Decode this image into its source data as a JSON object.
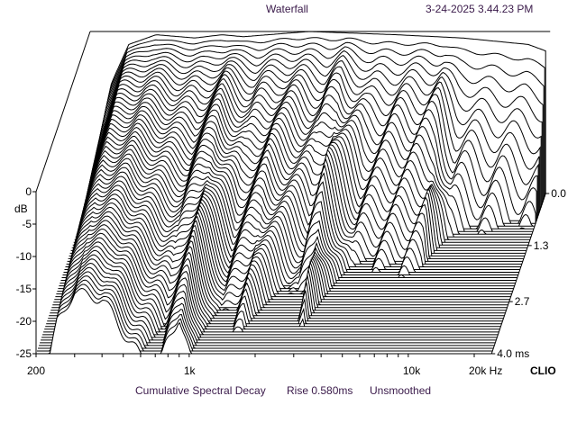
{
  "header": {
    "title": "Waterfall",
    "timestamp": "3-24-2025 3.44.23 PM"
  },
  "brand": "CLIO",
  "caption": {
    "mode": "Cumulative Spectral Decay",
    "rise": "Rise 0.580ms",
    "smoothing": "Unsmoothed"
  },
  "chart_data": {
    "type": "waterfall",
    "title": "Waterfall",
    "xlabel": "Hz",
    "ylabel": "dB",
    "zlabel": "ms",
    "xscale": "log",
    "xlim": [
      200,
      24000
    ],
    "ylim": [
      -25,
      0
    ],
    "zlim": [
      0.0,
      4.0
    ],
    "x_ticks": [
      {
        "value": 200,
        "label": "200"
      },
      {
        "value": 1000,
        "label": "1k"
      },
      {
        "value": 10000,
        "label": "10k"
      },
      {
        "value": 20000,
        "label": "20k Hz"
      }
    ],
    "y_ticks": [
      {
        "value": 0,
        "label": "0"
      },
      {
        "value": -5,
        "label": "-5"
      },
      {
        "value": -10,
        "label": "-10"
      },
      {
        "value": -15,
        "label": "-15"
      },
      {
        "value": -20,
        "label": "-20"
      },
      {
        "value": -25,
        "label": "-25"
      }
    ],
    "z_ticks": [
      {
        "value": 0.0,
        "label": "0.0"
      },
      {
        "value": 1.3,
        "label": "1.3"
      },
      {
        "value": 2.7,
        "label": "2.7"
      },
      {
        "value": 4.0,
        "label": "4.0  ms"
      }
    ],
    "slices": 60,
    "initial_response_db": [
      [
        200,
        -25
      ],
      [
        250,
        -8
      ],
      [
        300,
        -2
      ],
      [
        400,
        -0.5
      ],
      [
        600,
        -1
      ],
      [
        800,
        -0.5
      ],
      [
        1000,
        -0.8
      ],
      [
        2000,
        0
      ],
      [
        5000,
        -0.5
      ],
      [
        10000,
        -1
      ],
      [
        20000,
        -2
      ],
      [
        24000,
        -3
      ]
    ],
    "decay_rate_db_per_ms": [
      [
        200,
        2.5
      ],
      [
        400,
        4
      ],
      [
        700,
        7
      ],
      [
        900,
        4.5
      ],
      [
        1200,
        9
      ],
      [
        1600,
        7
      ],
      [
        2500,
        11
      ],
      [
        3000,
        7
      ],
      [
        4000,
        14
      ],
      [
        8500,
        12
      ],
      [
        10000,
        22
      ],
      [
        24000,
        30
      ]
    ]
  }
}
